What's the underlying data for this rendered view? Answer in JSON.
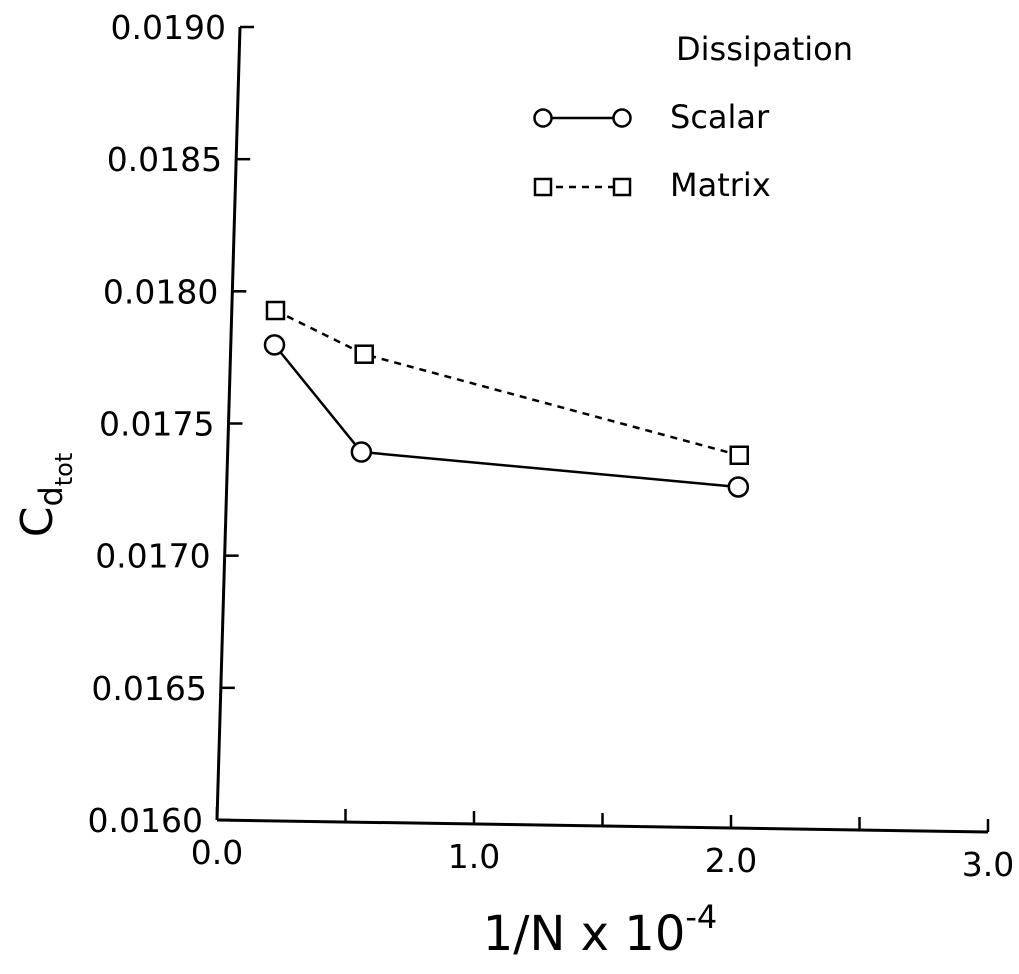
{
  "chart_data": {
    "type": "line",
    "title": "",
    "xlabel": "1/N x 10",
    "xlabel_exponent": "-4",
    "ylabel": "C",
    "ylabel_sub": "d",
    "ylabel_subsub": "tot",
    "xlim": [
      0.0,
      3.0
    ],
    "ylim": [
      0.016,
      0.019
    ],
    "x_ticks": [
      "0.0",
      "1.0",
      "2.0",
      "3.0"
    ],
    "y_ticks": [
      "0.0160",
      "0.0165",
      "0.0170",
      "0.0175",
      "0.0180",
      "0.0185",
      "0.0190"
    ],
    "grid": false,
    "legend": {
      "title": "Dissipation",
      "position": "top-right"
    },
    "series": [
      {
        "name": "Scalar",
        "marker": "circle",
        "line": "solid",
        "x": [
          0.17,
          0.52,
          1.99
        ],
        "y": [
          0.0178,
          0.0174,
          0.01729
        ]
      },
      {
        "name": "Matrix",
        "marker": "square",
        "line": "dashed",
        "x": [
          0.17,
          0.52,
          1.99
        ],
        "y": [
          0.01793,
          0.01777,
          0.01741
        ]
      }
    ]
  }
}
